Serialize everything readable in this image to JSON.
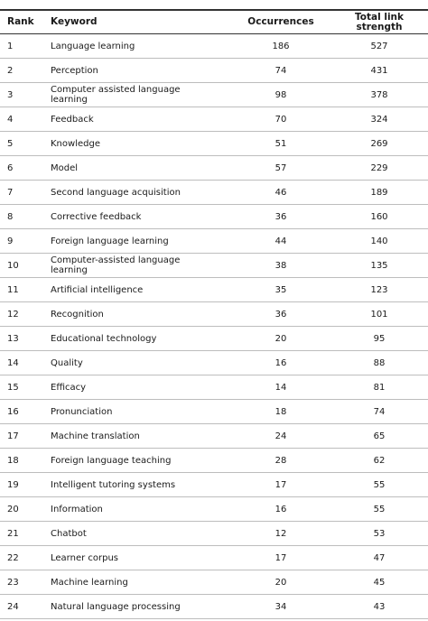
{
  "table": {
    "headers": [
      "Rank",
      "Keyword",
      "Occurrences",
      "Total link strength"
    ],
    "rows": [
      [
        1,
        "Language learning",
        186,
        527
      ],
      [
        2,
        "Perception",
        74,
        431
      ],
      [
        3,
        "Computer assisted language learning",
        98,
        378
      ],
      [
        4,
        "Feedback",
        70,
        324
      ],
      [
        5,
        "Knowledge",
        51,
        269
      ],
      [
        6,
        "Model",
        57,
        229
      ],
      [
        7,
        "Second language acquisition",
        46,
        189
      ],
      [
        8,
        "Corrective feedback",
        36,
        160
      ],
      [
        9,
        "Foreign language learning",
        44,
        140
      ],
      [
        10,
        "Computer-assisted language learning",
        38,
        135
      ],
      [
        11,
        "Artificial intelligence",
        35,
        123
      ],
      [
        12,
        "Recognition",
        36,
        101
      ],
      [
        13,
        "Educational technology",
        20,
        95
      ],
      [
        14,
        "Quality",
        16,
        88
      ],
      [
        15,
        "Efficacy",
        14,
        81
      ],
      [
        16,
        "Pronunciation",
        18,
        74
      ],
      [
        17,
        "Machine translation",
        24,
        65
      ],
      [
        18,
        "Foreign language teaching",
        28,
        62
      ],
      [
        19,
        "Intelligent tutoring systems",
        17,
        55
      ],
      [
        20,
        "Information",
        16,
        55
      ],
      [
        21,
        "Chatbot",
        12,
        53
      ],
      [
        22,
        "Learner corpus",
        17,
        47
      ],
      [
        23,
        "Machine learning",
        20,
        45
      ],
      [
        24,
        "Natural language processing",
        34,
        43
      ]
    ]
  }
}
